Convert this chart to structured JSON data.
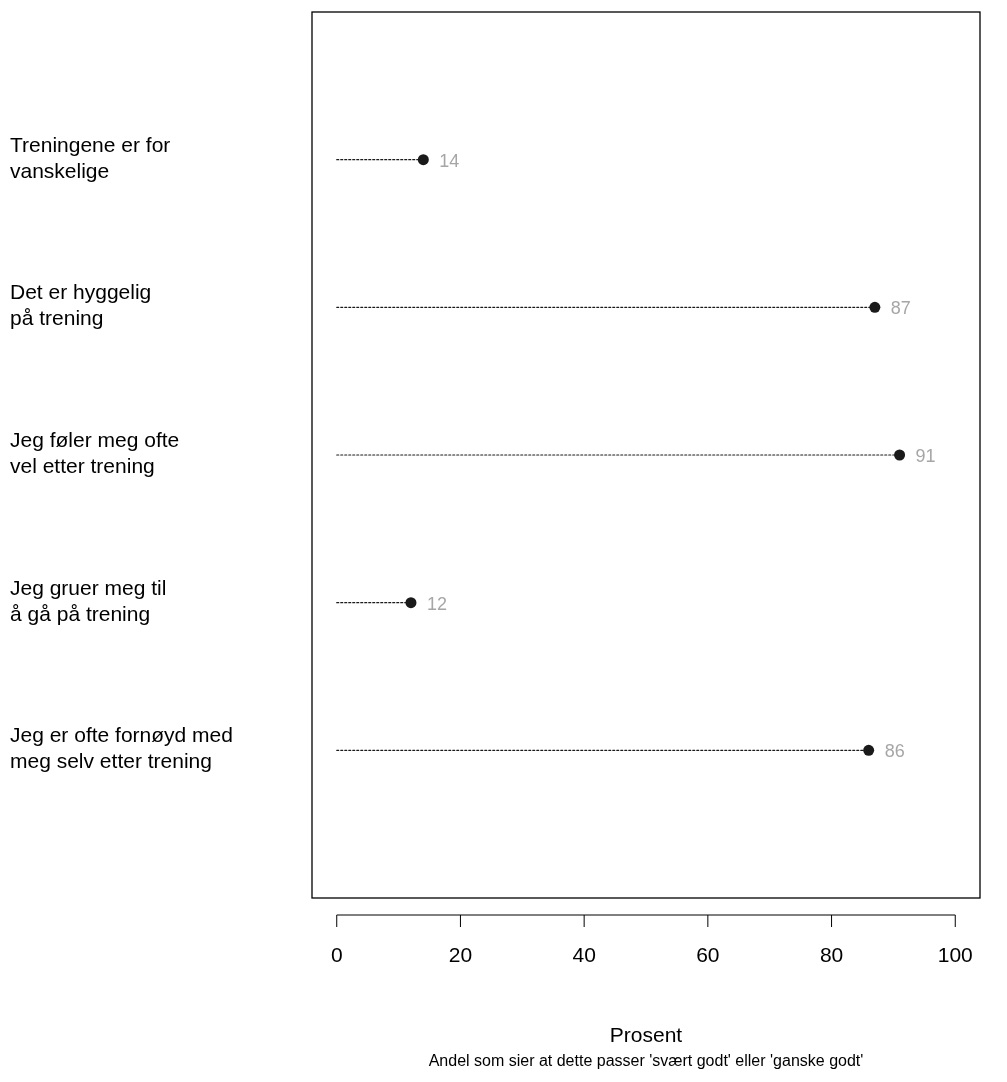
{
  "chart_data": {
    "type": "lollipop",
    "orientation": "horizontal",
    "categories": [
      "Treningene er for\nvanskelige",
      "Det er hyggelig\npå trening",
      "Jeg føler meg ofte\nvel etter trening",
      "Jeg gruer meg til\nå gå på trening",
      "Jeg er ofte fornøyd med\nmeg selv etter trening"
    ],
    "values": [
      14,
      87,
      91,
      12,
      86
    ],
    "color": "#1a1a1a",
    "xlim": [
      -4,
      104
    ],
    "xticks": [
      0,
      20,
      40,
      60,
      80,
      100
    ],
    "xlabel": "Prosent",
    "annotations": [
      "Andel som sier at dette passer 'svært godt' eller 'ganske godt'"
    ],
    "data_labels": true,
    "line_style": "dotted",
    "marker": "circle"
  }
}
